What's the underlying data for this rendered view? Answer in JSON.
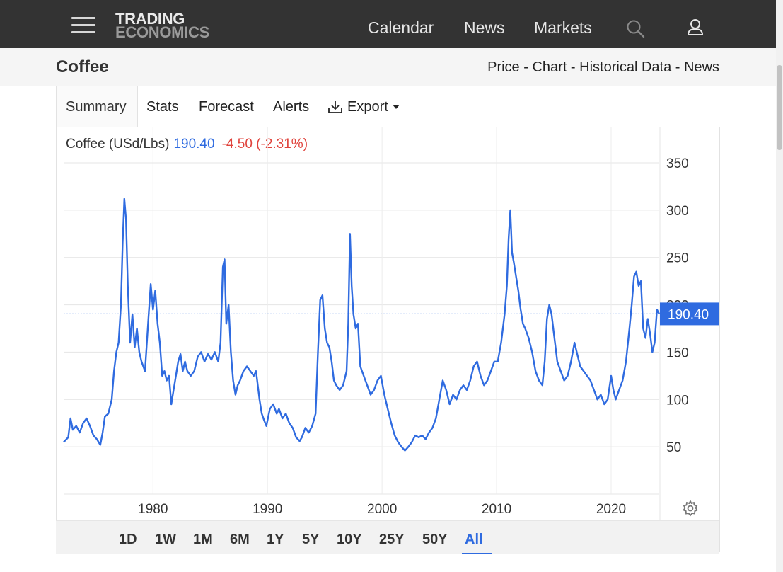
{
  "header": {
    "logo_line1": "TRADING",
    "logo_line2": "ECONOMICS",
    "nav": [
      "Calendar",
      "News",
      "Markets"
    ]
  },
  "page": {
    "title": "Coffee",
    "sublinks": [
      "Price",
      "Chart",
      "Historical Data",
      "News"
    ],
    "separator": " - "
  },
  "tabs": [
    "Summary",
    "Stats",
    "Forecast",
    "Alerts",
    "Export"
  ],
  "legend": {
    "name": "Coffee (USd/Lbs)",
    "value": "190.40",
    "change": "-4.50 (-2.31%)"
  },
  "range_buttons": [
    "1D",
    "1W",
    "1M",
    "6M",
    "1Y",
    "5Y",
    "10Y",
    "25Y",
    "50Y",
    "All"
  ],
  "active_range": "All",
  "colors": {
    "line": "#2f6be0",
    "negative": "#e0433c",
    "topbar": "#333333"
  },
  "chart_data": {
    "type": "line",
    "x_unit": "year",
    "xlim": [
      1972.2,
      2024.2
    ],
    "ylim": [
      0,
      350
    ],
    "yticks": [
      50,
      100,
      150,
      200,
      250,
      300,
      350
    ],
    "xticks": [
      1980,
      1990,
      2000,
      2010,
      2020
    ],
    "grid": true,
    "y_axis_position": "right",
    "last_value_label": "190.40",
    "last_value": 190.4,
    "series": [
      {
        "points": [
          [
            1972.2,
            55
          ],
          [
            1972.6,
            60
          ],
          [
            1972.8,
            80
          ],
          [
            1973.0,
            68
          ],
          [
            1973.3,
            72
          ],
          [
            1973.6,
            65
          ],
          [
            1973.9,
            75
          ],
          [
            1974.2,
            80
          ],
          [
            1974.5,
            72
          ],
          [
            1974.8,
            62
          ],
          [
            1975.1,
            58
          ],
          [
            1975.4,
            52
          ],
          [
            1975.6,
            65
          ],
          [
            1975.8,
            82
          ],
          [
            1976.1,
            85
          ],
          [
            1976.4,
            100
          ],
          [
            1976.6,
            130
          ],
          [
            1976.8,
            150
          ],
          [
            1977.0,
            160
          ],
          [
            1977.2,
            200
          ],
          [
            1977.35,
            265
          ],
          [
            1977.5,
            312
          ],
          [
            1977.65,
            290
          ],
          [
            1977.8,
            220
          ],
          [
            1978.0,
            160
          ],
          [
            1978.2,
            190
          ],
          [
            1978.4,
            155
          ],
          [
            1978.6,
            175
          ],
          [
            1978.8,
            150
          ],
          [
            1979.0,
            140
          ],
          [
            1979.3,
            130
          ],
          [
            1979.6,
            185
          ],
          [
            1979.8,
            222
          ],
          [
            1980.0,
            195
          ],
          [
            1980.2,
            215
          ],
          [
            1980.4,
            180
          ],
          [
            1980.6,
            160
          ],
          [
            1980.8,
            125
          ],
          [
            1981.0,
            130
          ],
          [
            1981.2,
            120
          ],
          [
            1981.4,
            125
          ],
          [
            1981.6,
            95
          ],
          [
            1981.8,
            110
          ],
          [
            1982.0,
            125
          ],
          [
            1982.2,
            140
          ],
          [
            1982.4,
            148
          ],
          [
            1982.6,
            130
          ],
          [
            1982.8,
            140
          ],
          [
            1983.0,
            130
          ],
          [
            1983.3,
            125
          ],
          [
            1983.6,
            130
          ],
          [
            1983.9,
            145
          ],
          [
            1984.2,
            150
          ],
          [
            1984.5,
            140
          ],
          [
            1984.8,
            148
          ],
          [
            1985.1,
            142
          ],
          [
            1985.4,
            150
          ],
          [
            1985.7,
            140
          ],
          [
            1985.9,
            160
          ],
          [
            1986.1,
            240
          ],
          [
            1986.25,
            248
          ],
          [
            1986.4,
            180
          ],
          [
            1986.6,
            200
          ],
          [
            1986.8,
            150
          ],
          [
            1987.0,
            120
          ],
          [
            1987.2,
            105
          ],
          [
            1987.4,
            115
          ],
          [
            1987.6,
            120
          ],
          [
            1987.9,
            130
          ],
          [
            1988.2,
            135
          ],
          [
            1988.5,
            130
          ],
          [
            1988.8,
            125
          ],
          [
            1989.0,
            130
          ],
          [
            1989.3,
            100
          ],
          [
            1989.5,
            85
          ],
          [
            1989.7,
            78
          ],
          [
            1989.9,
            72
          ],
          [
            1990.2,
            90
          ],
          [
            1990.5,
            95
          ],
          [
            1990.8,
            85
          ],
          [
            1991.0,
            90
          ],
          [
            1991.3,
            80
          ],
          [
            1991.6,
            85
          ],
          [
            1991.9,
            75
          ],
          [
            1992.2,
            70
          ],
          [
            1992.5,
            60
          ],
          [
            1992.8,
            56
          ],
          [
            1993.0,
            60
          ],
          [
            1993.3,
            70
          ],
          [
            1993.6,
            65
          ],
          [
            1993.9,
            72
          ],
          [
            1994.2,
            85
          ],
          [
            1994.4,
            150
          ],
          [
            1994.6,
            205
          ],
          [
            1994.8,
            210
          ],
          [
            1995.0,
            175
          ],
          [
            1995.2,
            160
          ],
          [
            1995.4,
            155
          ],
          [
            1995.6,
            140
          ],
          [
            1995.8,
            120
          ],
          [
            1996.0,
            115
          ],
          [
            1996.3,
            110
          ],
          [
            1996.6,
            115
          ],
          [
            1996.9,
            130
          ],
          [
            1997.05,
            180
          ],
          [
            1997.2,
            275
          ],
          [
            1997.35,
            220
          ],
          [
            1997.5,
            190
          ],
          [
            1997.7,
            175
          ],
          [
            1997.9,
            180
          ],
          [
            1998.1,
            135
          ],
          [
            1998.4,
            125
          ],
          [
            1998.7,
            115
          ],
          [
            1999.0,
            105
          ],
          [
            1999.3,
            110
          ],
          [
            1999.6,
            120
          ],
          [
            1999.9,
            125
          ],
          [
            2000.2,
            105
          ],
          [
            2000.5,
            90
          ],
          [
            2000.8,
            75
          ],
          [
            2001.1,
            62
          ],
          [
            2001.4,
            55
          ],
          [
            2001.7,
            50
          ],
          [
            2002.0,
            46
          ],
          [
            2002.3,
            50
          ],
          [
            2002.6,
            55
          ],
          [
            2002.9,
            62
          ],
          [
            2003.2,
            60
          ],
          [
            2003.5,
            62
          ],
          [
            2003.8,
            58
          ],
          [
            2004.1,
            65
          ],
          [
            2004.4,
            70
          ],
          [
            2004.7,
            80
          ],
          [
            2005.0,
            100
          ],
          [
            2005.3,
            120
          ],
          [
            2005.6,
            110
          ],
          [
            2005.9,
            95
          ],
          [
            2006.2,
            105
          ],
          [
            2006.5,
            100
          ],
          [
            2006.8,
            110
          ],
          [
            2007.1,
            115
          ],
          [
            2007.4,
            110
          ],
          [
            2007.7,
            120
          ],
          [
            2008.0,
            135
          ],
          [
            2008.3,
            140
          ],
          [
            2008.6,
            125
          ],
          [
            2008.9,
            115
          ],
          [
            2009.2,
            120
          ],
          [
            2009.5,
            130
          ],
          [
            2009.8,
            140
          ],
          [
            2010.1,
            140
          ],
          [
            2010.4,
            160
          ],
          [
            2010.7,
            190
          ],
          [
            2010.9,
            220
          ],
          [
            2011.05,
            270
          ],
          [
            2011.2,
            300
          ],
          [
            2011.35,
            255
          ],
          [
            2011.5,
            245
          ],
          [
            2011.7,
            230
          ],
          [
            2011.9,
            215
          ],
          [
            2012.1,
            195
          ],
          [
            2012.3,
            180
          ],
          [
            2012.5,
            175
          ],
          [
            2012.8,
            165
          ],
          [
            2013.1,
            150
          ],
          [
            2013.4,
            130
          ],
          [
            2013.7,
            120
          ],
          [
            2014.0,
            115
          ],
          [
            2014.2,
            140
          ],
          [
            2014.4,
            185
          ],
          [
            2014.6,
            200
          ],
          [
            2014.8,
            190
          ],
          [
            2015.0,
            170
          ],
          [
            2015.3,
            140
          ],
          [
            2015.6,
            130
          ],
          [
            2015.9,
            120
          ],
          [
            2016.2,
            125
          ],
          [
            2016.5,
            140
          ],
          [
            2016.8,
            160
          ],
          [
            2017.0,
            150
          ],
          [
            2017.3,
            135
          ],
          [
            2017.6,
            130
          ],
          [
            2017.9,
            125
          ],
          [
            2018.2,
            120
          ],
          [
            2018.5,
            110
          ],
          [
            2018.8,
            100
          ],
          [
            2019.1,
            105
          ],
          [
            2019.4,
            95
          ],
          [
            2019.7,
            100
          ],
          [
            2020.0,
            125
          ],
          [
            2020.2,
            110
          ],
          [
            2020.4,
            100
          ],
          [
            2020.7,
            110
          ],
          [
            2021.0,
            120
          ],
          [
            2021.3,
            140
          ],
          [
            2021.6,
            175
          ],
          [
            2021.8,
            200
          ],
          [
            2022.0,
            230
          ],
          [
            2022.2,
            235
          ],
          [
            2022.4,
            220
          ],
          [
            2022.6,
            225
          ],
          [
            2022.8,
            175
          ],
          [
            2023.0,
            165
          ],
          [
            2023.2,
            185
          ],
          [
            2023.4,
            170
          ],
          [
            2023.6,
            150
          ],
          [
            2023.8,
            160
          ],
          [
            2024.0,
            195
          ],
          [
            2024.2,
            190.4
          ]
        ]
      }
    ]
  }
}
